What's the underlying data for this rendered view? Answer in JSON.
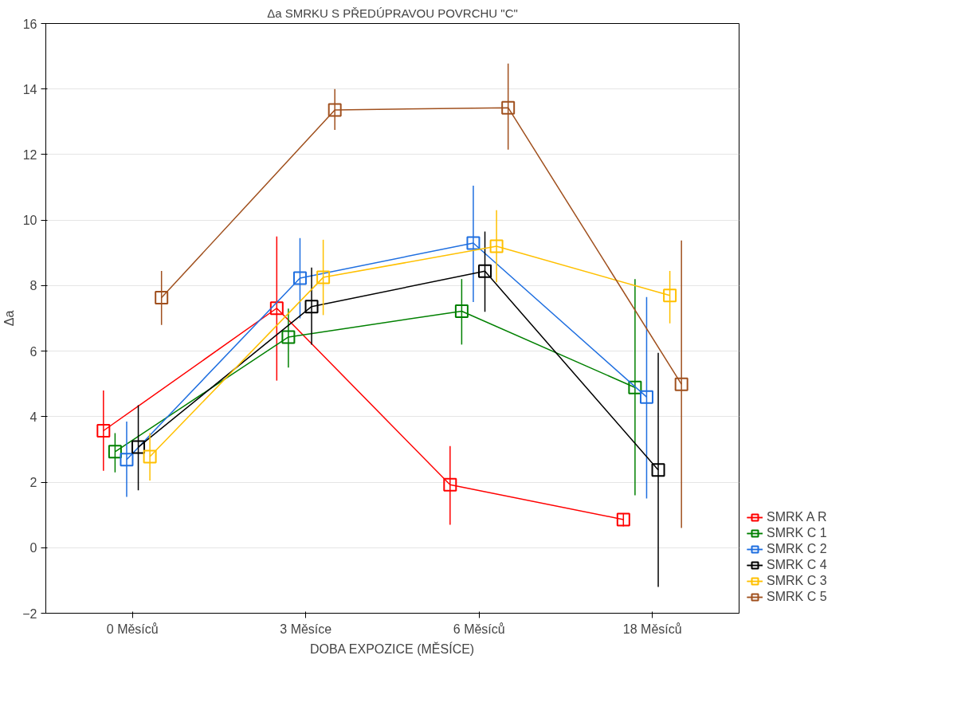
{
  "chart_data": {
    "type": "line",
    "title": "Δa SMRKU S PŘEDÚPRAVOU POVRCHU \"C\"",
    "xlabel": "DOBA EXPOZICE (MĚSÍCE)",
    "ylabel": "Δa",
    "categories": [
      "0 Měsíců",
      "3 Měsíce",
      "6 Měsíců",
      "18 Měsíců"
    ],
    "ylim": [
      -2,
      16
    ],
    "yticks": [
      -2,
      0,
      2,
      4,
      6,
      8,
      10,
      12,
      14,
      16
    ],
    "grid": "y",
    "legend": "bottom right",
    "marker": "square",
    "line_style": "solid",
    "series": [
      {
        "name": "SMRK A R",
        "color": "#ff0000",
        "values": [
          3.57,
          7.31,
          1.92,
          0.86
        ],
        "errors": [
          [
            2.35,
            4.8
          ],
          [
            5.1,
            9.5
          ],
          [
            0.7,
            3.1
          ],
          [
            0.65,
            1.05
          ]
        ]
      },
      {
        "name": "SMRK C 1",
        "color": "#008000",
        "values": [
          2.93,
          6.43,
          7.22,
          4.89
        ],
        "errors": [
          [
            2.3,
            3.5
          ],
          [
            5.5,
            7.3
          ],
          [
            6.2,
            8.2
          ],
          [
            1.6,
            8.2
          ]
        ]
      },
      {
        "name": "SMRK C 2",
        "color": "#1f6fe0",
        "values": [
          2.69,
          8.23,
          9.3,
          4.6
        ],
        "errors": [
          [
            1.55,
            3.85
          ],
          [
            7.0,
            9.45
          ],
          [
            7.5,
            11.05
          ],
          [
            1.5,
            7.65
          ]
        ]
      },
      {
        "name": "SMRK C 4",
        "color": "#000000",
        "values": [
          3.07,
          7.36,
          8.44,
          2.37
        ],
        "errors": [
          [
            1.75,
            4.35
          ],
          [
            6.2,
            8.55
          ],
          [
            7.2,
            9.65
          ],
          [
            -1.2,
            5.95
          ]
        ]
      },
      {
        "name": "SMRK C 3",
        "color": "#ffc000",
        "values": [
          2.78,
          8.25,
          9.2,
          7.7
        ],
        "errors": [
          [
            2.05,
            3.5
          ],
          [
            7.1,
            9.4
          ],
          [
            8.1,
            10.3
          ],
          [
            6.85,
            8.45
          ]
        ]
      },
      {
        "name": "SMRK C 5",
        "color": "#a0501e",
        "values": [
          7.63,
          13.36,
          13.43,
          4.99
        ],
        "errors": [
          [
            6.8,
            8.45
          ],
          [
            12.75,
            14.0
          ],
          [
            12.15,
            14.78
          ],
          [
            0.6,
            9.38
          ]
        ]
      }
    ]
  }
}
